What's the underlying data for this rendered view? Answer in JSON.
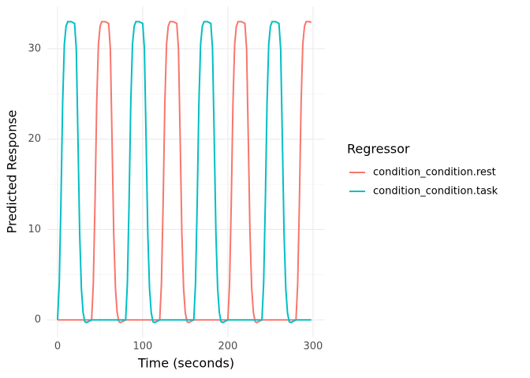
{
  "chart_data": {
    "type": "line",
    "x_label": "Time (seconds)",
    "y_label": "Predicted Response",
    "legend_title": "Regressor",
    "legend_position": "right",
    "grid": true,
    "xlim": [
      -12,
      314
    ],
    "ylim": [
      -1.9,
      34.7
    ],
    "xticks": [
      0,
      100,
      200,
      300
    ],
    "yticks": [
      0,
      10,
      20,
      30
    ],
    "x": [
      0,
      2,
      4,
      6,
      8,
      10,
      12,
      14,
      16,
      18,
      20,
      22,
      24,
      26,
      28,
      30,
      32,
      34,
      36,
      38,
      40,
      42,
      44,
      46,
      48,
      50,
      52,
      54,
      56,
      58,
      60,
      62,
      64,
      66,
      68,
      70,
      72,
      74,
      76,
      78,
      80,
      82,
      84,
      86,
      88,
      90,
      92,
      94,
      96,
      98,
      100,
      102,
      104,
      106,
      108,
      110,
      112,
      114,
      116,
      118,
      120,
      122,
      124,
      126,
      128,
      130,
      132,
      134,
      136,
      138,
      140,
      142,
      144,
      146,
      148,
      150,
      152,
      154,
      156,
      158,
      160,
      162,
      164,
      166,
      168,
      170,
      172,
      174,
      176,
      178,
      180,
      182,
      184,
      186,
      188,
      190,
      192,
      194,
      196,
      198,
      200,
      202,
      204,
      206,
      208,
      210,
      212,
      214,
      216,
      218,
      220,
      222,
      224,
      226,
      228,
      230,
      232,
      234,
      236,
      238,
      240,
      242,
      244,
      246,
      248,
      250,
      252,
      254,
      256,
      258,
      260,
      262,
      264,
      266,
      268,
      270,
      272,
      274,
      276,
      278,
      280,
      282,
      284,
      286,
      288,
      290,
      292,
      294,
      296,
      298
    ],
    "series": [
      {
        "name": "condition_condition.rest",
        "color": "#F8766D",
        "values": [
          0,
          0,
          0,
          0,
          0,
          0,
          0,
          0,
          0,
          0,
          0,
          0,
          0,
          0,
          0,
          0,
          0,
          0,
          0,
          0,
          0,
          4,
          13,
          24,
          30.5,
          32.5,
          33,
          33,
          33,
          32.9,
          32.8,
          30,
          20,
          9.5,
          3.5,
          0.8,
          -0.2,
          -0.3,
          -0.2,
          -0.1,
          0,
          0,
          0,
          0,
          0,
          0,
          0,
          0,
          0,
          0,
          0,
          0,
          0,
          0,
          0,
          0,
          0,
          0,
          0,
          0,
          0,
          4,
          13,
          24,
          30.5,
          32.5,
          33,
          33,
          33,
          32.9,
          32.8,
          30,
          20,
          9.5,
          3.5,
          0.8,
          -0.2,
          -0.3,
          -0.2,
          -0.1,
          0,
          0,
          0,
          0,
          0,
          0,
          0,
          0,
          0,
          0,
          0,
          0,
          0,
          0,
          0,
          0,
          0,
          0,
          0,
          0,
          0,
          4,
          13,
          24,
          30.5,
          32.5,
          33,
          33,
          33,
          32.9,
          32.8,
          30,
          20,
          9.5,
          3.5,
          0.8,
          -0.2,
          -0.3,
          -0.2,
          -0.1,
          0,
          0,
          0,
          0,
          0,
          0,
          0,
          0,
          0,
          0,
          0,
          0,
          0,
          0,
          0,
          0,
          0,
          0,
          0,
          0,
          0,
          4,
          13,
          24,
          30.5,
          32.5,
          33,
          33,
          33,
          32.9
        ]
      },
      {
        "name": "condition_condition.task",
        "color": "#00BFC4",
        "values": [
          0,
          4,
          13,
          24,
          30.5,
          32.5,
          33,
          33,
          33,
          32.9,
          32.8,
          30,
          20,
          9.5,
          3.5,
          0.8,
          -0.2,
          -0.3,
          -0.2,
          -0.1,
          0,
          0,
          0,
          0,
          0,
          0,
          0,
          0,
          0,
          0,
          0,
          0,
          0,
          0,
          0,
          0,
          0,
          0,
          0,
          0,
          0,
          4,
          13,
          24,
          30.5,
          32.5,
          33,
          33,
          33,
          32.9,
          32.8,
          30,
          20,
          9.5,
          3.5,
          0.8,
          -0.2,
          -0.3,
          -0.2,
          -0.1,
          0,
          0,
          0,
          0,
          0,
          0,
          0,
          0,
          0,
          0,
          0,
          0,
          0,
          0,
          0,
          0,
          0,
          0,
          0,
          0,
          0,
          4,
          13,
          24,
          30.5,
          32.5,
          33,
          33,
          33,
          32.9,
          32.8,
          30,
          20,
          9.5,
          3.5,
          0.8,
          -0.2,
          -0.3,
          -0.2,
          -0.1,
          0,
          0,
          0,
          0,
          0,
          0,
          0,
          0,
          0,
          0,
          0,
          0,
          0,
          0,
          0,
          0,
          0,
          0,
          0,
          0,
          0,
          4,
          13,
          24,
          30.5,
          32.5,
          33,
          33,
          33,
          32.9,
          32.8,
          30,
          20,
          9.5,
          3.5,
          0.8,
          -0.2,
          -0.3,
          -0.2,
          -0.1,
          0,
          0,
          0,
          0,
          0,
          0,
          0,
          0,
          0,
          0
        ]
      }
    ]
  }
}
